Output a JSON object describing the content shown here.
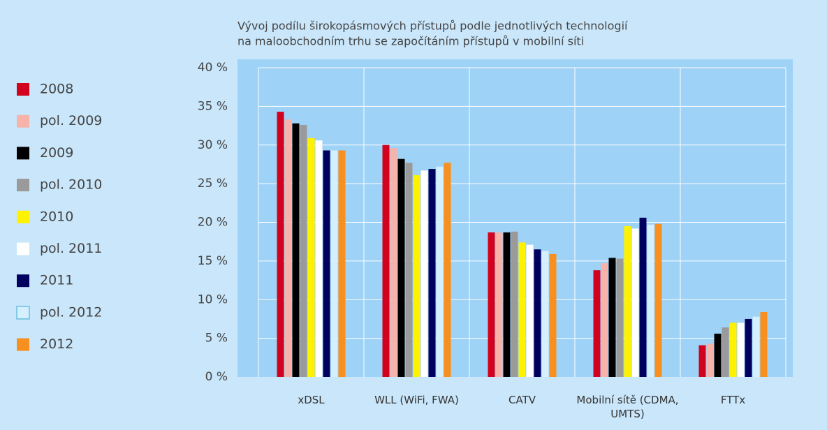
{
  "chart_data": {
    "type": "bar",
    "title": [
      "Vývoj podílu širokopásmových přístupů podle jednotlivých technologií",
      "na maloobchodním trhu se započítáním přístupů v mobilní síti"
    ],
    "categories": [
      "xDSL",
      "WLL (WiFi, FWA)",
      "CATV",
      "Mobilní sítě (CDMA, UMTS)",
      "FTTx"
    ],
    "series": [
      {
        "name": "2008",
        "color": "#d2011d",
        "values": [
          34.3,
          30.0,
          18.7,
          13.8,
          4.1
        ]
      },
      {
        "name": "pol. 2009",
        "color": "#f7b2aa",
        "values": [
          33.3,
          29.6,
          18.7,
          14.7,
          4.3
        ]
      },
      {
        "name": "2009",
        "color": "#000000",
        "values": [
          32.8,
          28.2,
          18.7,
          15.4,
          5.6
        ]
      },
      {
        "name": "pol. 2010",
        "color": "#9a9a9a",
        "values": [
          32.6,
          27.7,
          18.8,
          15.3,
          6.4
        ]
      },
      {
        "name": "2010",
        "color": "#fff200",
        "values": [
          30.9,
          26.1,
          17.4,
          19.5,
          7.0
        ]
      },
      {
        "name": "pol. 2011",
        "color": "#ffffff",
        "values": [
          30.6,
          26.7,
          17.1,
          19.2,
          7.0
        ]
      },
      {
        "name": "2011",
        "color": "#00005e",
        "values": [
          29.3,
          26.9,
          16.5,
          20.6,
          7.5
        ]
      },
      {
        "name": "pol. 2012",
        "color": "#d4f0ff",
        "values": [
          29.3,
          27.2,
          16.3,
          19.7,
          7.8
        ]
      },
      {
        "name": "2012",
        "color": "#f7901e",
        "values": [
          29.3,
          27.7,
          15.9,
          19.8,
          8.4
        ]
      }
    ],
    "ylim": [
      0,
      40
    ],
    "yticks": [
      {
        "value": 0,
        "label": "0 %"
      },
      {
        "value": 5,
        "label": "5 %"
      },
      {
        "value": 10,
        "label": "10 %"
      },
      {
        "value": 15,
        "label": "15 %"
      },
      {
        "value": 20,
        "label": "20 %"
      },
      {
        "value": 25,
        "label": "25 %"
      },
      {
        "value": 30,
        "label": "30 %"
      },
      {
        "value": 35,
        "label": "35 %"
      },
      {
        "value": 40,
        "label": "40 %"
      }
    ],
    "grid": true,
    "legend": "left"
  }
}
